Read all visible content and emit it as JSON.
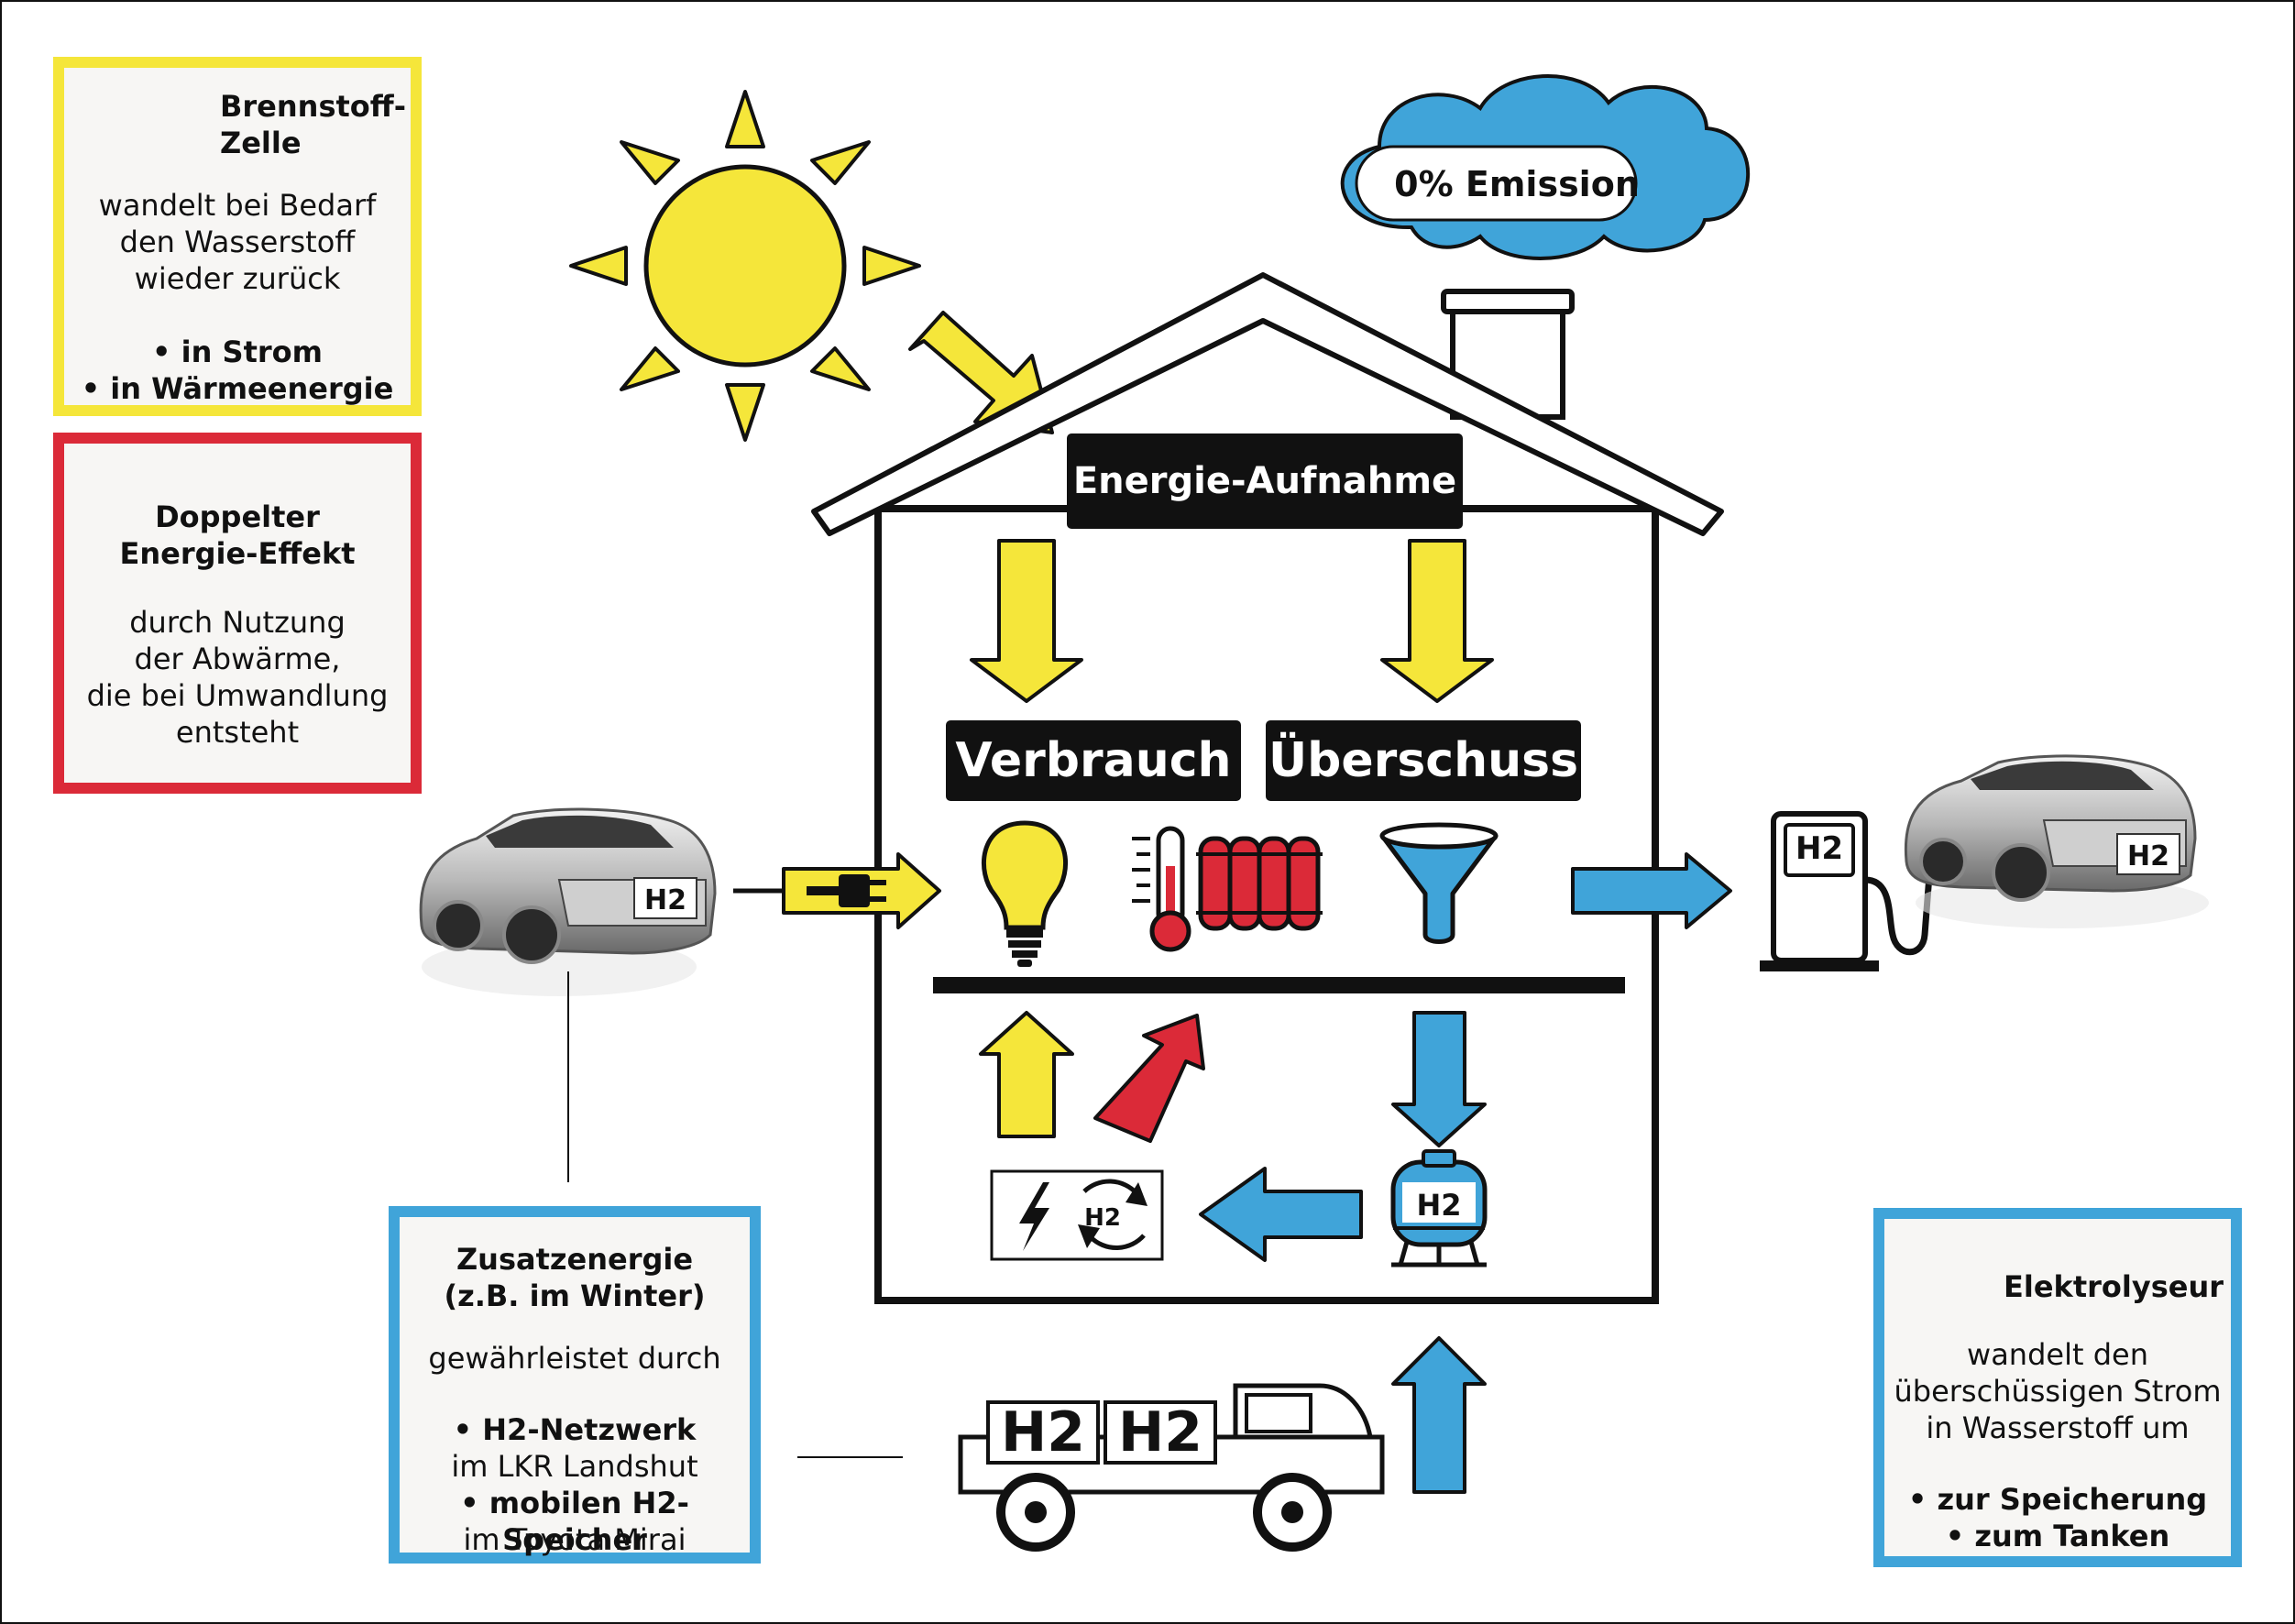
{
  "boxes": {
    "fuel_cell": {
      "title": "Brennstoff-\nZelle",
      "body": "wandelt bei Bedarf\nden Wasserstoff\nwieder zurück",
      "bullets": [
        "• in Strom",
        "• in Wärmeenergie"
      ],
      "border_color": "#f5e63a"
    },
    "double_effect": {
      "title": "Doppelter\nEnergie-Effekt",
      "body": "durch Nutzung\nder Abwärme,\ndie bei Umwandlung\nentsteht",
      "border_color": "#db2a38"
    },
    "extra_energy": {
      "title": "Zusatzenergie\n(z.B. im Winter)",
      "body": "gewährleistet durch",
      "line1_bold": "• H2-Netzwerk",
      "line1_plain": "im LKR Landshut",
      "line2_bold": "• mobilen H2-Speicher",
      "line2_plain": "im Toyota Mirai",
      "border_color": "#40a4d9"
    },
    "electrolyzer": {
      "title": "Elektrolyseur",
      "body": "wandelt den\nüberschüssigen Strom\nin Wasserstoff um",
      "bullets": [
        "• zur Speicherung",
        "• zum Tanken"
      ],
      "border_color": "#40a4d9"
    }
  },
  "labels": {
    "energy_intake": "Energie-Aufnahme",
    "consumption": "Verbrauch",
    "surplus": "Überschuss",
    "emission": "0% Emission"
  },
  "h2": {
    "icon_label": "H2",
    "car_left": "H2",
    "car_right": "H2",
    "pump": "H2",
    "tank": "H2",
    "truck_1": "H2",
    "truck_2": "H2"
  },
  "colors": {
    "yellow": "#f5e63a",
    "red": "#db2a38",
    "blue": "#40a4d9",
    "black": "#111111"
  }
}
